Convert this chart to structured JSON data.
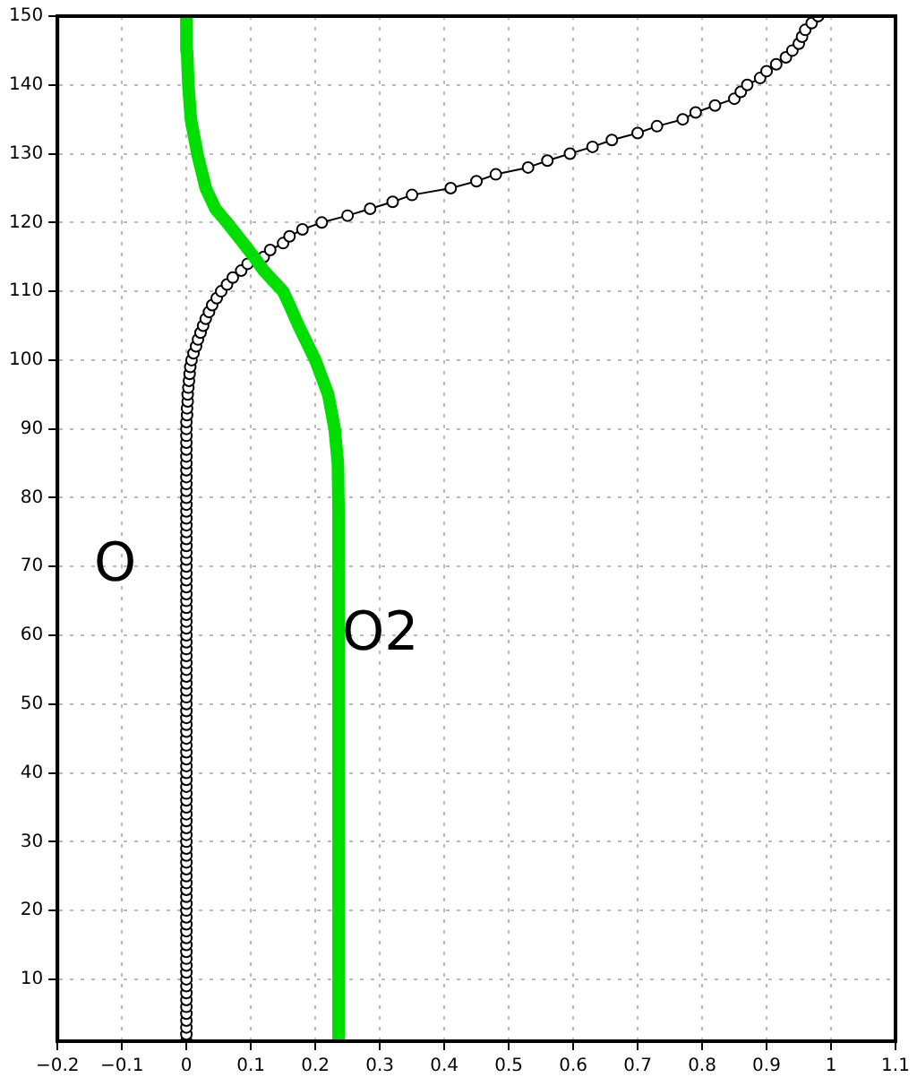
{
  "chart_data": {
    "type": "line",
    "xlim": [
      -0.2,
      1.1
    ],
    "xticks": [
      -0.2,
      -0.1,
      0,
      0.1,
      0.2,
      0.3,
      0.4,
      0.5,
      0.6,
      0.7,
      0.8,
      0.9,
      1,
      1.1
    ],
    "ylim": [
      1,
      150
    ],
    "yticks": [
      10,
      20,
      30,
      40,
      50,
      60,
      70,
      80,
      90,
      100,
      110,
      120,
      130,
      140,
      150
    ],
    "grid": true,
    "legend": false,
    "series": [
      {
        "name": "O",
        "color": "#000000",
        "marker": "circle",
        "x": [
          0,
          0,
          0,
          0,
          0,
          0,
          0,
          0,
          0,
          0,
          0,
          0,
          0,
          0,
          0,
          0,
          0,
          0,
          0,
          0,
          0,
          0,
          0,
          0,
          0,
          0,
          0,
          0,
          0,
          0,
          0,
          0,
          0,
          0,
          0,
          0,
          0,
          0,
          0,
          0,
          0,
          0,
          0,
          0,
          0,
          0,
          0,
          0,
          0,
          0,
          0,
          0,
          0,
          0,
          0,
          0,
          0,
          0,
          0,
          0,
          0,
          0,
          0,
          0,
          0,
          0,
          0,
          0,
          0,
          0,
          0,
          0,
          0,
          0,
          0,
          0,
          0,
          0,
          0,
          0,
          0,
          0,
          0,
          0,
          0,
          0,
          0,
          0,
          0,
          0,
          0,
          0.001,
          0.001,
          0.002,
          0.002,
          0.003,
          0.004,
          0.005,
          0.006,
          0.008,
          0.011,
          0.015,
          0.018,
          0.022,
          0.026,
          0.03,
          0.035,
          0.04,
          0.047,
          0.054,
          0.063,
          0.072,
          0.085,
          0.095,
          0.12,
          0.13,
          0.15,
          0.16,
          0.18,
          0.21,
          0.25,
          0.285,
          0.32,
          0.35,
          0.41,
          0.45,
          0.48,
          0.53,
          0.56,
          0.595,
          0.63,
          0.66,
          0.7,
          0.73,
          0.77,
          0.79,
          0.82,
          0.85,
          0.86,
          0.87,
          0.89,
          0.9,
          0.915,
          0.93,
          0.94,
          0.95,
          0.955,
          0.96,
          0.97,
          0.98
        ],
        "values": [
          1,
          2,
          3,
          4,
          5,
          6,
          7,
          8,
          9,
          10,
          11,
          12,
          13,
          14,
          15,
          16,
          17,
          18,
          19,
          20,
          21,
          22,
          23,
          24,
          25,
          26,
          27,
          28,
          29,
          30,
          31,
          32,
          33,
          34,
          35,
          36,
          37,
          38,
          39,
          40,
          41,
          42,
          43,
          44,
          45,
          46,
          47,
          48,
          49,
          50,
          51,
          52,
          53,
          54,
          55,
          56,
          57,
          58,
          59,
          60,
          61,
          62,
          63,
          64,
          65,
          66,
          67,
          68,
          69,
          70,
          71,
          72,
          73,
          74,
          75,
          76,
          77,
          78,
          79,
          80,
          81,
          82,
          83,
          84,
          85,
          86,
          87,
          88,
          89,
          90,
          91,
          92,
          93,
          94,
          95,
          96,
          97,
          98,
          99,
          100,
          101,
          102,
          103,
          104,
          105,
          106,
          107,
          108,
          109,
          110,
          111,
          112,
          113,
          114,
          115,
          116,
          117,
          118,
          119,
          120,
          121,
          122,
          123,
          124,
          125,
          126,
          127,
          128,
          129,
          130,
          131,
          132,
          133,
          134,
          135,
          136,
          137,
          138,
          139,
          140,
          141,
          142,
          143,
          144,
          145,
          146,
          147,
          148,
          149,
          150
        ]
      },
      {
        "name": "O2",
        "color": "#00dd00",
        "marker": "none",
        "x": [
          0.236,
          0.236,
          0.236,
          0.236,
          0.236,
          0.236,
          0.236,
          0.236,
          0.236,
          0.235,
          0.23,
          0.22,
          0.2,
          0.174,
          0.16,
          0.15,
          0.12,
          0.105,
          0.08,
          0.063,
          0.045,
          0.03,
          0.017,
          0.007,
          0.003,
          0.001,
          0
        ],
        "values": [
          1,
          10,
          20,
          30,
          40,
          50,
          60,
          70,
          78,
          85,
          90,
          95,
          100,
          105,
          108,
          110,
          113,
          115,
          118,
          120,
          122,
          125,
          130,
          135,
          140,
          145,
          150
        ]
      }
    ]
  }
}
